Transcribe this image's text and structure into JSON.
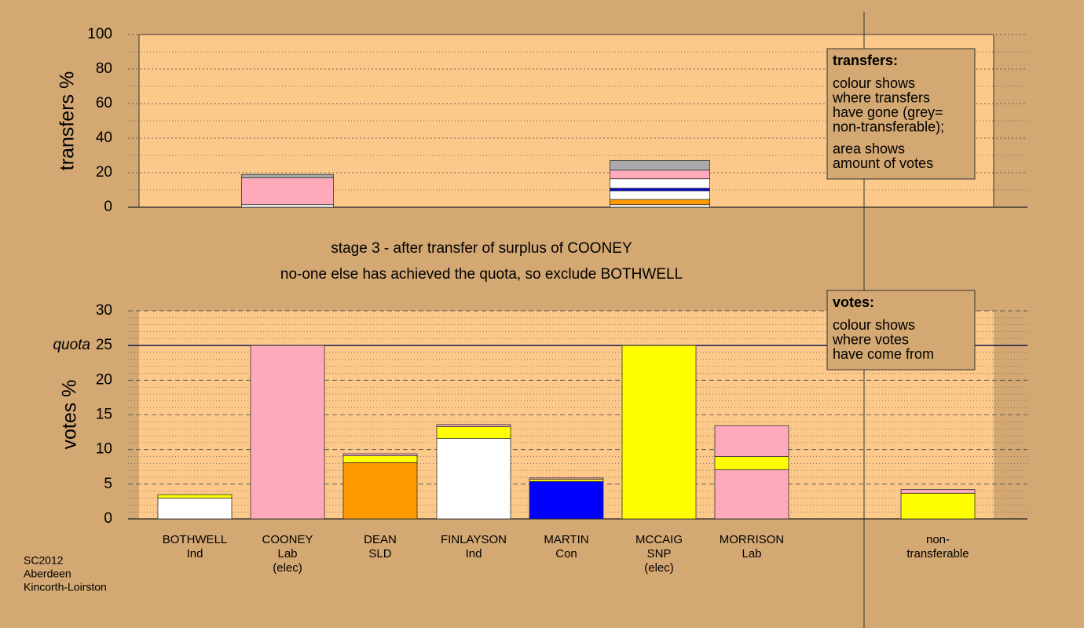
{
  "chart_data": [
    {
      "type": "stacked-bar",
      "ylabel": "transfers %",
      "ylim": [
        0,
        100
      ],
      "yticks": [
        0,
        20,
        40,
        60,
        80,
        100
      ],
      "minor_yticks": [
        10,
        30,
        50,
        70,
        90
      ],
      "grid": true,
      "categories": [
        null,
        null
      ],
      "bars": [
        {
          "segments": [
            {
              "color": "#ffffff",
              "value": 1.5
            },
            {
              "color": "#ffaabb",
              "value": 15.5
            },
            {
              "color": "#aaaaaa",
              "value": 2
            }
          ]
        },
        {
          "segments": [
            {
              "color": "#ffffff",
              "value": 1.5
            },
            {
              "color": "#ff9900",
              "value": 3
            },
            {
              "color": "#ffffff",
              "value": 5
            },
            {
              "color": "#0000cc",
              "value": 1.5
            },
            {
              "color": "#ffffff",
              "value": 5.5
            },
            {
              "color": "#ffaabb",
              "value": 5
            },
            {
              "color": "#aaaaaa",
              "value": 5.5
            }
          ]
        }
      ],
      "note": {
        "heading": "transfers:",
        "lines": [
          "colour shows",
          "where transfers",
          "have gone (grey=",
          "non-transferable);",
          "area shows",
          "amount of votes"
        ]
      }
    },
    {
      "type": "stacked-bar",
      "ylabel": "votes %",
      "ylim": [
        0,
        30
      ],
      "yticks": [
        0,
        5,
        10,
        15,
        20,
        25,
        30
      ],
      "minor_yticks": [
        1,
        2,
        3,
        4,
        6,
        7,
        8,
        9,
        11,
        12,
        13,
        14,
        16,
        17,
        18,
        19,
        21,
        22,
        23,
        24,
        26,
        27,
        28,
        29
      ],
      "grid": true,
      "quota": {
        "label": "quota",
        "value": 25
      },
      "categories": [
        [
          "BOTHWELL",
          "Ind"
        ],
        [
          "COONEY",
          "Lab",
          "(elec)"
        ],
        [
          "DEAN",
          "SLD"
        ],
        [
          "FINLAYSON",
          "Ind"
        ],
        [
          "MARTIN",
          "Con"
        ],
        [
          "MCCAIG",
          "SNP",
          "(elec)"
        ],
        [
          "MORRISON",
          "Lab"
        ],
        [
          "non-",
          "transferable"
        ]
      ],
      "bars": [
        {
          "segments": [
            {
              "color": "#ffffff",
              "value": 3
            },
            {
              "color": "#ffff00",
              "value": 0.5
            }
          ]
        },
        {
          "segments": [
            {
              "color": "#ffaabb",
              "value": 25
            }
          ]
        },
        {
          "segments": [
            {
              "color": "#ff9900",
              "value": 8.1
            },
            {
              "color": "#ffff00",
              "value": 1
            },
            {
              "color": "#ffaabb",
              "value": 0.3
            }
          ]
        },
        {
          "segments": [
            {
              "color": "#ffffff",
              "value": 11.6
            },
            {
              "color": "#ffff00",
              "value": 1.7
            },
            {
              "color": "#ffaabb",
              "value": 0.3
            }
          ]
        },
        {
          "segments": [
            {
              "color": "#0000ff",
              "value": 5.4
            },
            {
              "color": "#ffff00",
              "value": 0.3
            },
            {
              "color": "#ffaabb",
              "value": 0.2
            }
          ]
        },
        {
          "segments": [
            {
              "color": "#ffff00",
              "value": 25
            }
          ]
        },
        {
          "segments": [
            {
              "color": "#ffaabb",
              "value": 7.1
            },
            {
              "color": "#ffff00",
              "value": 1.9
            },
            {
              "color": "#ffaabb",
              "value": 4.45
            }
          ]
        },
        {
          "segments": [
            {
              "color": "#ffff00",
              "value": 3.7
            },
            {
              "color": "#ffaabb",
              "value": 0.55
            }
          ]
        }
      ],
      "note": {
        "heading": "votes:",
        "lines": [
          "colour shows",
          "where votes",
          "have come from"
        ]
      }
    }
  ],
  "titles": [
    "stage 3 - after transfer of surplus of COONEY",
    "no-one else has achieved the quota, so exclude BOTHWELL"
  ],
  "footer": [
    "SC2012",
    "Aberdeen",
    "Kincorth-Loirston"
  ]
}
